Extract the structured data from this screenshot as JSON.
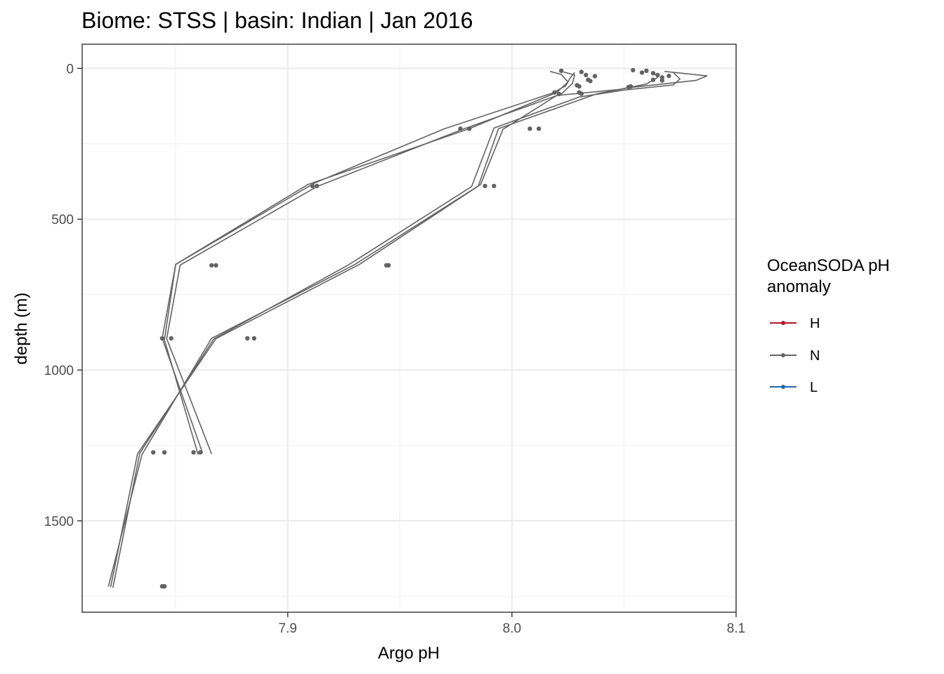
{
  "chart_data": {
    "type": "line",
    "title": "Biome: STSS | basin: Indian  | Jan 2016",
    "xlabel": "Argo pH",
    "ylabel": "depth (m)",
    "xlim": [
      7.8083,
      8.1
    ],
    "ylim": [
      1803,
      -80
    ],
    "y_reversed": true,
    "x_ticks": [
      7.9,
      8.0,
      8.1
    ],
    "y_ticks": [
      0,
      500,
      1000,
      1500
    ],
    "grid": true,
    "legend": {
      "title_lines": [
        "OceanSODA pH",
        "anomaly"
      ],
      "placement": "right",
      "entries": [
        {
          "label": "H",
          "color": "#b2182b"
        },
        {
          "label": "N",
          "color": "#636363"
        },
        {
          "label": "L",
          "color": "#2166ac"
        }
      ]
    },
    "series": [
      {
        "group": "N",
        "color": "#636363",
        "lines": [
          [
            [
              8.017,
              10
            ],
            [
              8.022,
              20
            ],
            [
              8.025,
              45
            ],
            [
              8.02,
              80
            ],
            [
              7.981,
              200
            ],
            [
              7.909,
              385
            ],
            [
              7.85,
              650
            ],
            [
              7.844,
              895
            ],
            [
              7.862,
              1275
            ]
          ],
          [
            [
              8.023,
              12
            ],
            [
              8.028,
              22
            ],
            [
              8.027,
              50
            ],
            [
              8.022,
              85
            ],
            [
              7.977,
              205
            ],
            [
              7.913,
              392
            ],
            [
              7.852,
              652
            ],
            [
              7.846,
              896
            ],
            [
              7.866,
              1278
            ]
          ],
          [
            [
              8.028,
              13
            ],
            [
              8.026,
              32
            ],
            [
              8.024,
              58
            ],
            [
              8.018,
              82
            ],
            [
              7.97,
              200
            ],
            [
              7.912,
              380
            ],
            [
              7.85,
              650
            ],
            [
              7.845,
              900
            ],
            [
              7.86,
              1280
            ]
          ],
          [
            [
              8.068,
              10
            ],
            [
              8.087,
              25
            ],
            [
              8.082,
              40
            ],
            [
              8.052,
              64
            ],
            [
              8.038,
              84
            ],
            [
              7.994,
              200
            ],
            [
              7.985,
              390
            ],
            [
              7.932,
              650
            ],
            [
              7.868,
              896
            ],
            [
              7.833,
              1278
            ],
            [
              7.821,
              1720
            ]
          ],
          [
            [
              8.072,
              14
            ],
            [
              8.075,
              35
            ],
            [
              8.072,
              55
            ],
            [
              8.05,
              72
            ],
            [
              8.03,
              95
            ],
            [
              7.992,
              198
            ],
            [
              7.982,
              392
            ],
            [
              7.927,
              652
            ],
            [
              7.867,
              897
            ],
            [
              7.834,
              1276
            ],
            [
              7.822,
              1722
            ]
          ],
          [
            [
              8.063,
              12
            ],
            [
              8.065,
              30
            ],
            [
              8.06,
              52
            ],
            [
              8.048,
              70
            ],
            [
              8.02,
              90
            ],
            [
              7.996,
              202
            ],
            [
              7.986,
              385
            ],
            [
              7.93,
              650
            ],
            [
              7.866,
              895
            ],
            [
              7.835,
              1280
            ],
            [
              7.82,
              1718
            ]
          ]
        ],
        "points": [
          [
            8.022,
            8
          ],
          [
            8.031,
            12
          ],
          [
            8.033,
            22
          ],
          [
            8.037,
            26
          ],
          [
            8.029,
            56
          ],
          [
            8.03,
            60
          ],
          [
            8.019,
            80
          ],
          [
            8.021,
            85
          ],
          [
            8.03,
            80
          ],
          [
            8.031,
            84
          ],
          [
            8.034,
            38
          ],
          [
            8.035,
            42
          ],
          [
            8.054,
            6
          ],
          [
            8.058,
            14
          ],
          [
            8.06,
            8
          ],
          [
            8.063,
            16
          ],
          [
            8.065,
            22
          ],
          [
            8.067,
            30
          ],
          [
            8.07,
            25
          ],
          [
            8.063,
            38
          ],
          [
            8.067,
            40
          ],
          [
            8.053,
            60
          ],
          [
            8.052,
            62
          ],
          [
            7.977,
            200
          ],
          [
            7.981,
            200
          ],
          [
            8.008,
            200
          ],
          [
            8.012,
            200
          ],
          [
            7.911,
            390
          ],
          [
            7.913,
            390
          ],
          [
            7.988,
            390
          ],
          [
            7.992,
            390
          ],
          [
            7.866,
            653
          ],
          [
            7.868,
            653
          ],
          [
            7.944,
            653
          ],
          [
            7.945,
            653
          ],
          [
            7.844,
            895
          ],
          [
            7.848,
            895
          ],
          [
            7.882,
            895
          ],
          [
            7.885,
            895
          ],
          [
            7.84,
            1273
          ],
          [
            7.845,
            1273
          ],
          [
            7.858,
            1273
          ],
          [
            7.861,
            1273
          ],
          [
            7.844,
            1717
          ],
          [
            7.845,
            1717
          ]
        ]
      }
    ]
  }
}
